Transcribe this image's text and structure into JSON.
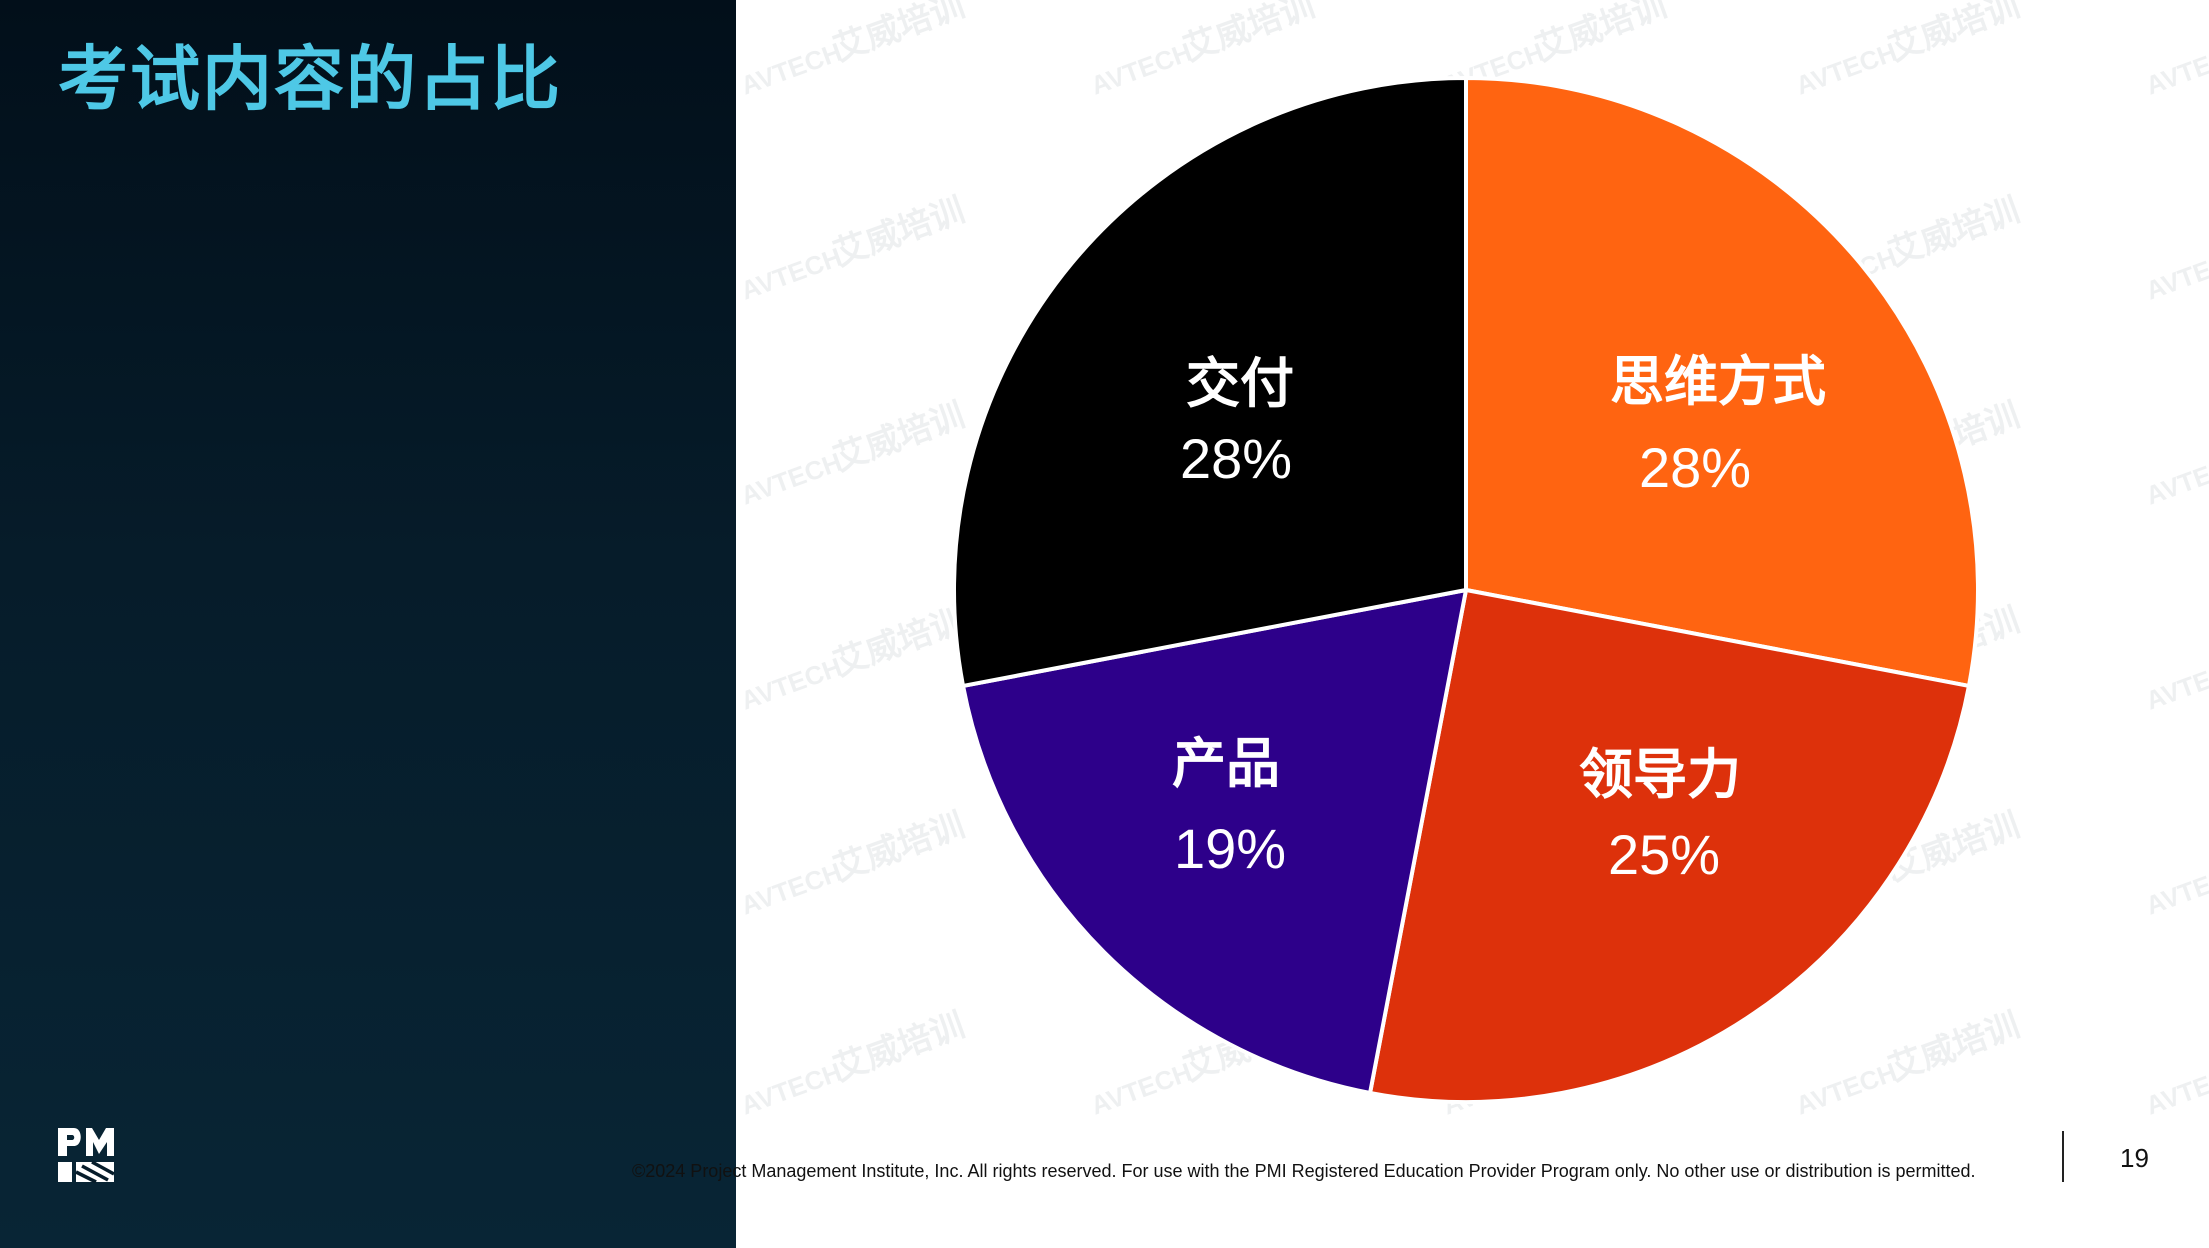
{
  "slide": {
    "title": "考试内容的占比",
    "page_number": "19",
    "footer": "©2024 Project Management Institute, Inc. All rights reserved. For use with the PMI Registered Education Provider Program only. No other use or distribution is permitted.",
    "logo_text": "PMI",
    "watermark": {
      "brand": "AVTECH",
      "text": "艾威培训"
    }
  },
  "colors": {
    "title": "#4ec8e6",
    "panel_dark": "#020f1a",
    "panel_light": "#082535"
  },
  "chart_data": {
    "type": "pie",
    "title": "",
    "slices": [
      {
        "label": "思维方式",
        "value": 28,
        "display": "28%",
        "color": "#ff6411"
      },
      {
        "label": "领导力",
        "value": 25,
        "display": "25%",
        "color": "#dd310b"
      },
      {
        "label": "产品",
        "value": 19,
        "display": "19%",
        "color": "#2d008a"
      },
      {
        "label": "交付",
        "value": 28,
        "display": "28%",
        "color": "#000000"
      }
    ],
    "start_angle": "12 o'clock",
    "direction": "clockwise",
    "legend": "none",
    "labels": "inside slices"
  }
}
